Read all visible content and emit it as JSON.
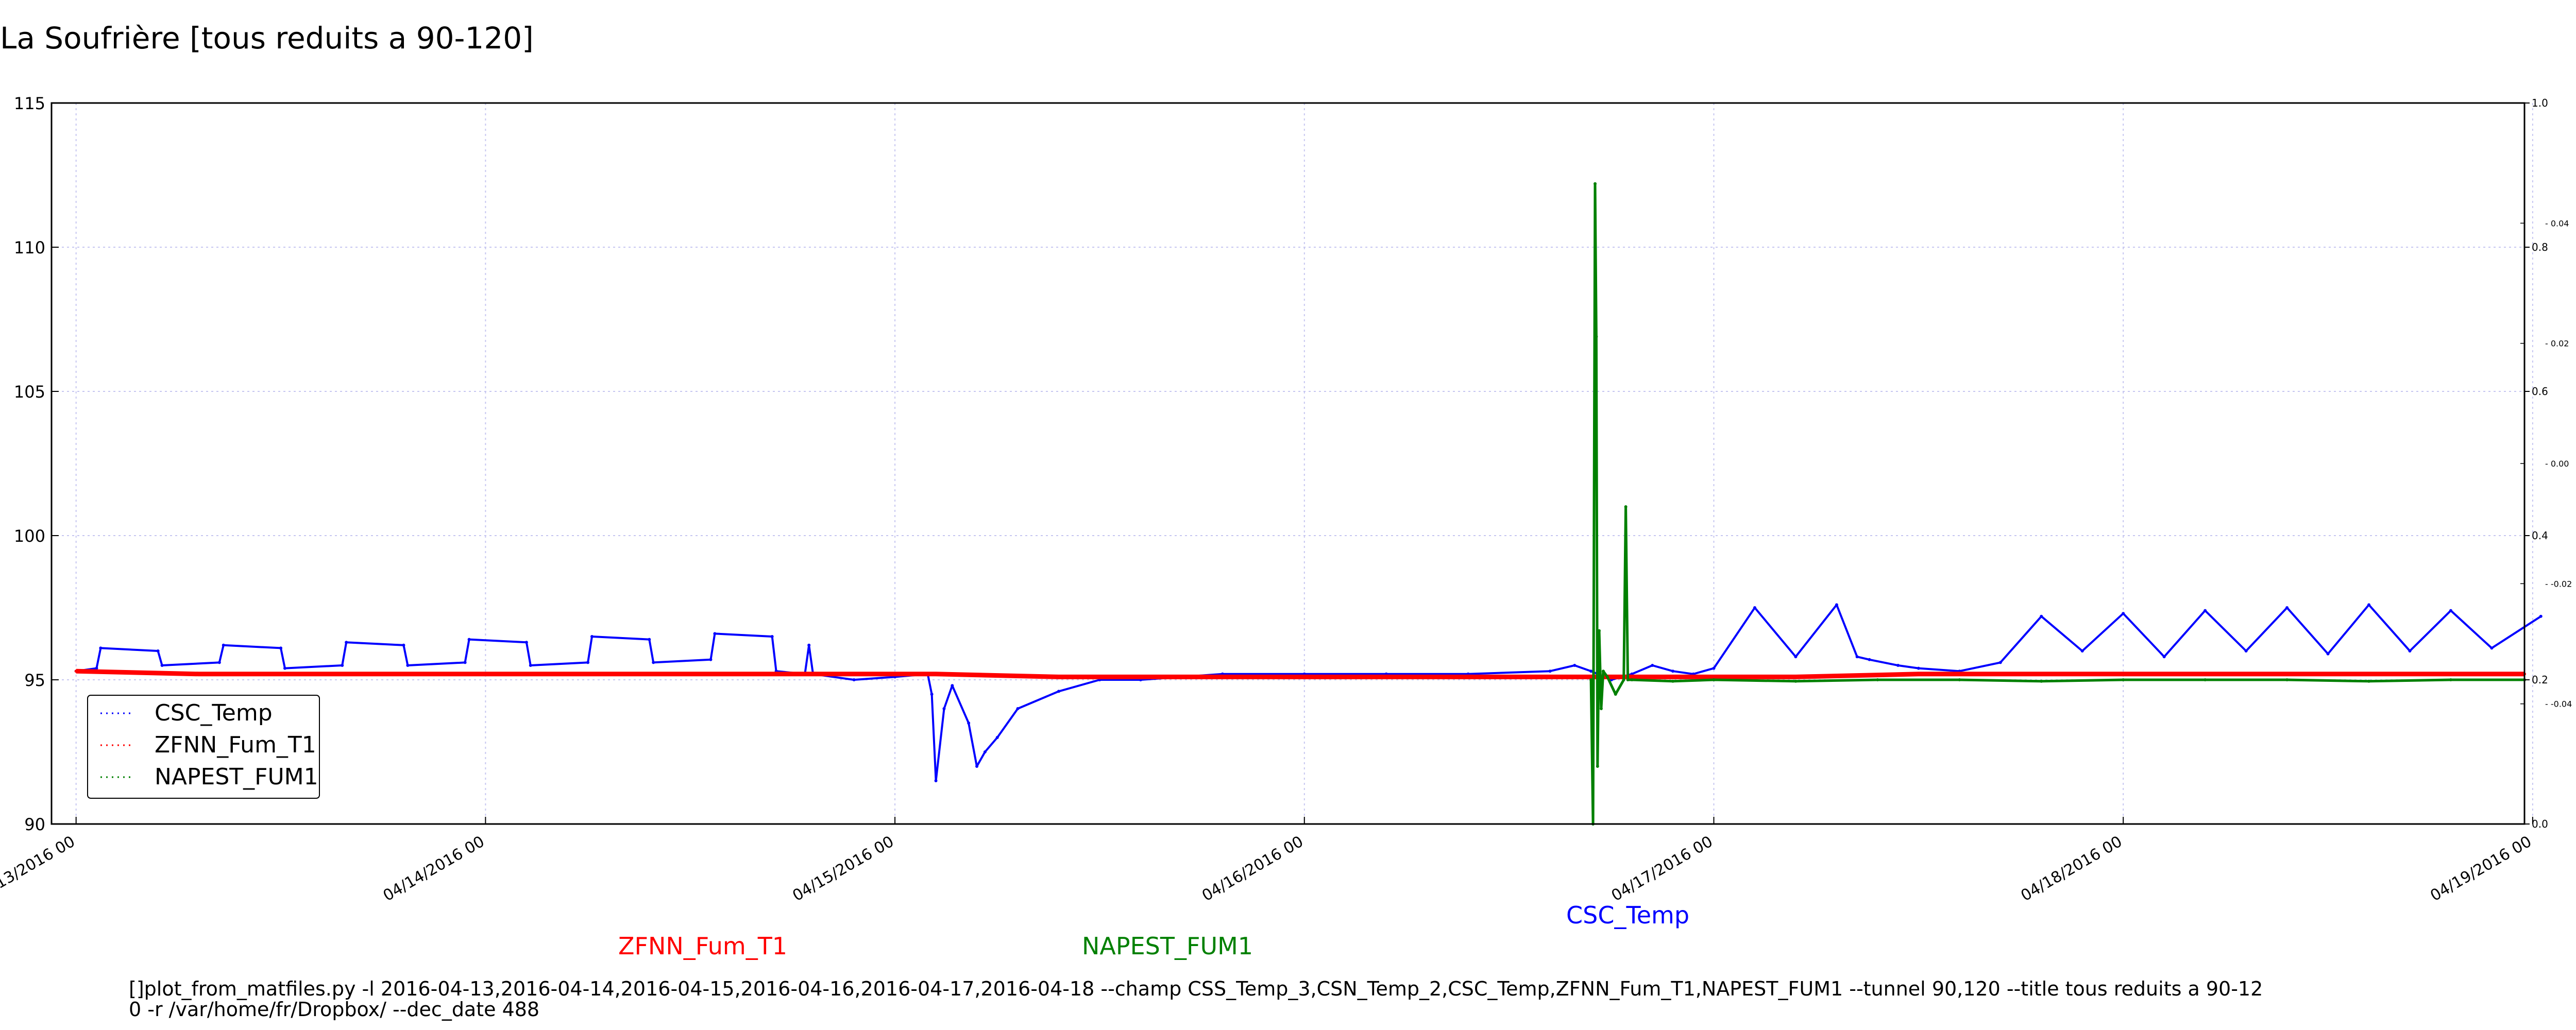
{
  "chart_data": {
    "type": "line",
    "title": "La Soufrière [tous reduits a 90-120]",
    "x_axis": {
      "ticks": [
        "04/13/2016 00",
        "04/14/2016 00",
        "04/15/2016 00",
        "04/16/2016 00",
        "04/17/2016 00",
        "04/18/2016 00",
        "04/19/2016 00"
      ],
      "first_tick_visible_label": "13/2016 00",
      "range_days": [
        -0.06,
        5.98
      ],
      "tick_rotation": "30 degrees"
    },
    "y_axis": {
      "range": [
        90,
        115
      ],
      "ticks": [
        "90",
        "95",
        "100",
        "105",
        "110",
        "115"
      ]
    },
    "y_axis_right_outer": {
      "range": [
        0.0,
        1.0
      ],
      "ticks": [
        "0.0",
        "0.2",
        "0.4",
        "0.6",
        "0.8",
        "1.0"
      ]
    },
    "y_axis_right_inner": {
      "ticks": [
        "0.04",
        "0.02",
        "0.00",
        "-0.02",
        "-0.04"
      ]
    },
    "grid": true,
    "legend": {
      "placement": "lower-left",
      "entries": [
        "CSC_Temp",
        "ZFNN_Fum_T1",
        "NAPEST_FUM1"
      ]
    },
    "series": [
      {
        "name": "CSC_Temp",
        "color": "#0000ff",
        "x": [
          0.0,
          0.05,
          0.06,
          0.2,
          0.21,
          0.35,
          0.36,
          0.5,
          0.51,
          0.65,
          0.66,
          0.8,
          0.81,
          0.95,
          0.96,
          1.1,
          1.11,
          1.25,
          1.26,
          1.4,
          1.41,
          1.55,
          1.56,
          1.7,
          1.71,
          1.78,
          1.79,
          1.8,
          1.9,
          2.0,
          2.08,
          2.09,
          2.1,
          2.12,
          2.14,
          2.18,
          2.2,
          2.22,
          2.25,
          2.3,
          2.4,
          2.5,
          2.6,
          2.7,
          2.8,
          3.0,
          3.2,
          3.4,
          3.6,
          3.66,
          3.7,
          3.75,
          3.8,
          3.85,
          3.9,
          3.95,
          4.0,
          4.1,
          4.2,
          4.3,
          4.35,
          4.38,
          4.45,
          4.5,
          4.6,
          4.7,
          4.8,
          4.9,
          5.0,
          5.1,
          5.2,
          5.3,
          5.4,
          5.5,
          5.6,
          5.7,
          5.8,
          5.9,
          6.02
        ],
        "y": [
          95.3,
          95.4,
          96.1,
          96.0,
          95.5,
          95.6,
          96.2,
          96.1,
          95.4,
          95.5,
          96.3,
          96.2,
          95.5,
          95.6,
          96.4,
          96.3,
          95.5,
          95.6,
          96.5,
          96.4,
          95.6,
          95.7,
          96.6,
          96.5,
          95.3,
          95.2,
          96.2,
          95.2,
          95.0,
          95.1,
          95.2,
          94.5,
          91.5,
          94.0,
          94.8,
          93.5,
          92.0,
          92.5,
          93.0,
          94.0,
          94.6,
          95.0,
          95.0,
          95.1,
          95.2,
          95.2,
          95.2,
          95.2,
          95.3,
          95.5,
          95.3,
          95.0,
          95.2,
          95.5,
          95.3,
          95.2,
          95.4,
          97.5,
          95.8,
          97.6,
          95.8,
          95.7,
          95.5,
          95.4,
          95.3,
          95.6,
          97.2,
          96.0,
          97.3,
          95.8,
          97.4,
          96.0,
          97.5,
          95.9,
          97.6,
          96.0,
          97.4,
          96.1,
          97.2
        ]
      },
      {
        "name": "ZFNN_Fum_T1",
        "color": "#ff0000",
        "x": [
          0.0,
          0.3,
          0.6,
          0.9,
          1.2,
          1.5,
          1.8,
          2.1,
          2.4,
          2.7,
          3.0,
          3.3,
          3.6,
          3.9,
          4.2,
          4.5,
          4.8,
          5.1,
          5.4,
          5.7,
          5.98
        ],
        "y": [
          95.3,
          95.2,
          95.2,
          95.2,
          95.2,
          95.2,
          95.2,
          95.2,
          95.1,
          95.1,
          95.1,
          95.1,
          95.1,
          95.1,
          95.1,
          95.2,
          95.2,
          95.2,
          95.2,
          95.2,
          95.2
        ]
      },
      {
        "name": "NAPEST_FUM1",
        "color": "#008000",
        "x": [
          3.7,
          3.705,
          3.71,
          3.713,
          3.716,
          3.72,
          3.725,
          3.73,
          3.74,
          3.76,
          3.78,
          3.785,
          3.79,
          3.8,
          3.9,
          4.0,
          4.2,
          4.4,
          4.6,
          4.8,
          5.0,
          5.2,
          5.4,
          5.6,
          5.8,
          5.98
        ],
        "y": [
          95.0,
          90.0,
          112.2,
          106.9,
          92.0,
          96.7,
          94.0,
          95.3,
          95.1,
          94.5,
          95.0,
          101.0,
          95.0,
          95.0,
          94.95,
          95.0,
          94.95,
          95.0,
          95.0,
          94.95,
          95.0,
          95.0,
          95.0,
          94.95,
          95.0,
          95.0
        ]
      }
    ]
  },
  "series_labels_below": [
    {
      "text": "ZFNN_Fum_T1",
      "color": "#ff0000"
    },
    {
      "text": "NAPEST_FUM1",
      "color": "#008000"
    },
    {
      "text": "CSC_Temp",
      "color": "#0000ff"
    }
  ],
  "command_line": [
    "[]plot_from_matfiles.py -l 2016-04-13,2016-04-14,2016-04-15,2016-04-16,2016-04-17,2016-04-18 --champ CSS_Temp_3,CSN_Temp_2,CSC_Temp,ZFNN_Fum_T1,NAPEST_FUM1 --tunnel 90,120 --title tous reduits a 90-12",
    "0 -r /var/home/fr/Dropbox/ --dec_date 488"
  ]
}
